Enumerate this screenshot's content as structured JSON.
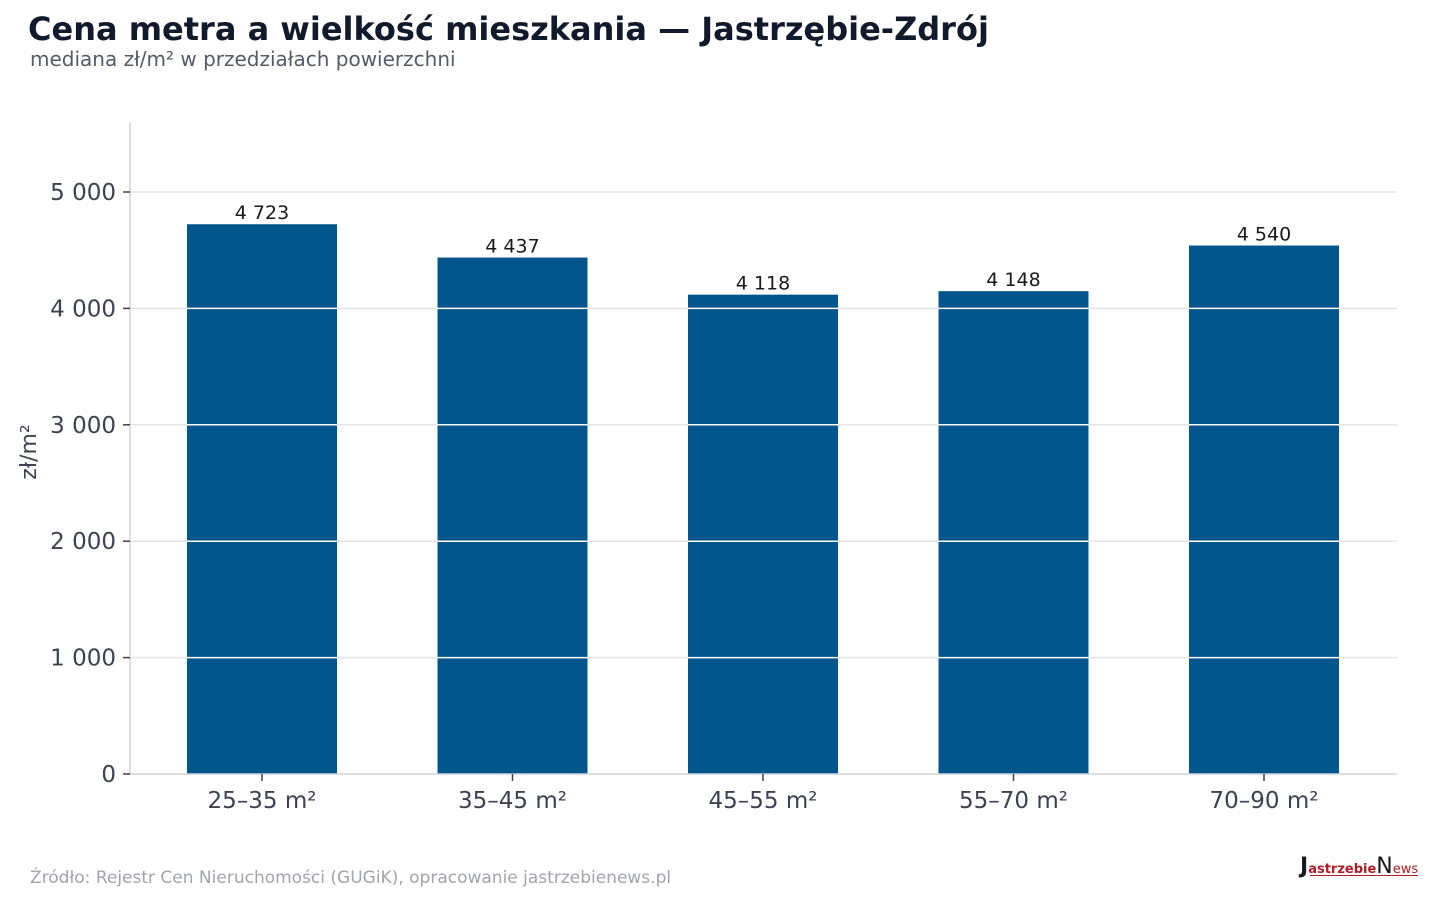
{
  "header": {
    "title": "Cena metra a wielkość mieszkania — Jastrzębie-Zdrój",
    "subtitle": "mediana zł/m² w przedziałach powierzchni"
  },
  "footer": {
    "source": "Źródło: Rejestr Cen Nieruchomości (GUGiK), opracowanie jastrzebienews.pl",
    "logo": {
      "j": "J",
      "a": "astrzebie",
      "n": "N",
      "b": "ews"
    }
  },
  "colors": {
    "bar": "#00558c",
    "grid": "#e3e5e8",
    "axis": "#cfd3d8",
    "tick_text": "#3c4250",
    "label_text": "#1a1a1a"
  },
  "chart_data": {
    "type": "bar",
    "categories": [
      "25–35 m²",
      "35–45 m²",
      "45–55 m²",
      "55–70 m²",
      "70–90 m²"
    ],
    "values": [
      4723,
      4437,
      4118,
      4148,
      4540
    ],
    "value_labels": [
      "4 723",
      "4 437",
      "4 118",
      "4 148",
      "4 540"
    ],
    "ylabel": "zł/m²",
    "ylim": [
      0,
      5600
    ],
    "yticks": [
      0,
      1000,
      2000,
      3000,
      4000,
      5000
    ],
    "ytick_labels": [
      "0",
      "1 000",
      "2 000",
      "3 000",
      "4 000",
      "5 000"
    ],
    "grid": true,
    "legend": "none"
  }
}
